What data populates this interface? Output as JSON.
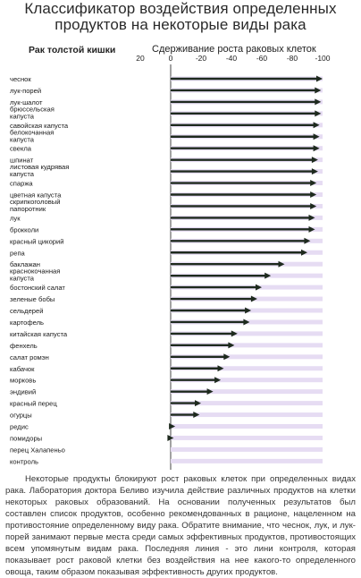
{
  "title_line1": "Классификатор воздействия определенных",
  "title_line2": "продуктов на некоторые виды рака",
  "subtitle_left": "Рак толстой кишки",
  "subtitle_right": "Сдерживание роста раковых клеток",
  "footer": "Некоторые продукты блокируют рост раковых клеток при определенных видах рака. Лаборатория доктора Беливо изучила действие различных продуктов на клетки некоторых раковых образований. На основании полученных результатов был составлен список продуктов, особенно рекомендованных в рационе, нацеленном на противостояние определенному виду рака. Обратите внимание, что чеснок, лук, и лук-порей занимают первые места среди самых эффективных продуктов, противостоящих всем упомянутым видам рака. Последняя линия - это лини контроля, которая показывает рост раковой клетки без воздействия на нее какого-то определенного овоща, таким образом показывая эффективность других продуктов.",
  "colors": {
    "arrow": "#1e2a1e",
    "band": "#e6dcf3",
    "gridline": "#444444"
  },
  "chart_data": {
    "type": "bar",
    "orientation": "horizontal",
    "xlim": [
      20,
      -100
    ],
    "ticks": [
      "20",
      "0",
      "-20",
      "-40",
      "-60",
      "-80",
      "-100"
    ],
    "tick_values": [
      20,
      0,
      -20,
      -40,
      -60,
      -80,
      -100
    ],
    "categories": [
      "чеснок",
      "лук-порей",
      "лук-шалот",
      "брюссельская капуста",
      "савойская капуста",
      "белокочанная капуста",
      "свекла",
      "шпинат",
      "листовая кудрявая капуста",
      "спаржа",
      "цветная капуста",
      "скрипкоголовый папоротник",
      "лук",
      "брокколи",
      "красный цикорий",
      "репа",
      "баклажан",
      "краснокочанная капуста",
      "бостонский салат",
      "зеленые бобы",
      "сельдерей",
      "картофель",
      "китайская капуста",
      "фенхель",
      "салат ромэн",
      "кабачок",
      "морковь",
      "эндивий",
      "красный перец",
      "огурцы",
      "редис",
      "помидоры",
      "перец Халапеньо",
      "контроль"
    ],
    "values": [
      -100,
      -99,
      -99,
      -99,
      -98,
      -98,
      -98,
      -97,
      -97,
      -96,
      -96,
      -96,
      -95,
      -95,
      -92,
      -90,
      -75,
      -66,
      -60,
      -57,
      -53,
      -52,
      -44,
      -42,
      -39,
      -35,
      -33,
      -28,
      -20,
      -19,
      -3,
      -2,
      -1,
      0
    ]
  }
}
